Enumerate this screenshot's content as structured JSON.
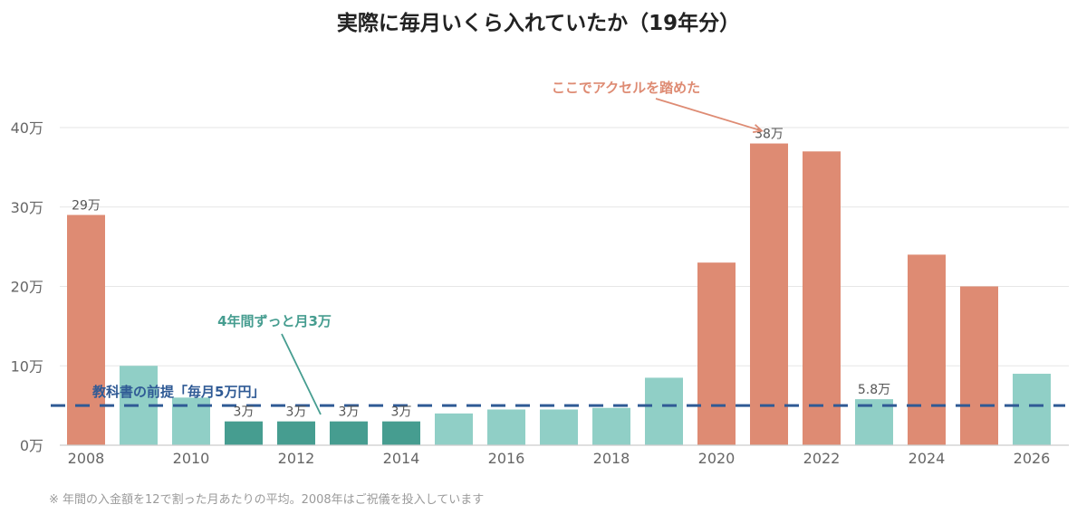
{
  "title": "実際に毎月いくら入れていたか（19年分）",
  "footnote": "※ 年間の入金額を12で割った月あたりの平均。2008年はご祝儀を投入しています",
  "colors": {
    "high": "#de8b73",
    "mid": "#90cfc6",
    "low": "#469d90",
    "reference": "#2f5a95",
    "grid": "#e6e6e6",
    "axis": "#cccccc",
    "tick_text": "#666666",
    "value_label": "#555555"
  },
  "chart_data": {
    "type": "bar",
    "title": "実際に毎月いくら入れていたか（19年分）",
    "xlabel": "",
    "ylabel": "",
    "categories": [
      "2008",
      "2009",
      "2010",
      "2011",
      "2012",
      "2013",
      "2014",
      "2015",
      "2016",
      "2017",
      "2018",
      "2019",
      "2020",
      "2021",
      "2022",
      "2023",
      "2024",
      "2025",
      "2026"
    ],
    "values": [
      29,
      10,
      6,
      3,
      3,
      3,
      3,
      4,
      4.5,
      4.5,
      4.7,
      8.5,
      23,
      38,
      37,
      5.8,
      24,
      20,
      9
    ],
    "levels": [
      "high",
      "mid",
      "mid",
      "low",
      "low",
      "low",
      "low",
      "mid",
      "mid",
      "mid",
      "mid",
      "mid",
      "high",
      "high",
      "high",
      "mid",
      "high",
      "high",
      "mid"
    ],
    "value_labels": [
      "29万",
      "",
      "",
      "3万",
      "3万",
      "3万",
      "3万",
      "",
      "",
      "",
      "",
      "",
      "",
      "38万",
      "",
      "5.8万",
      "",
      "",
      ""
    ],
    "x_tick_labels": [
      "2008",
      "",
      "2010",
      "",
      "2012",
      "",
      "2014",
      "",
      "2016",
      "",
      "2018",
      "",
      "2020",
      "",
      "2022",
      "",
      "2024",
      "",
      "2026"
    ],
    "ylim": [
      0,
      40
    ],
    "y_ticks": [
      0,
      10,
      20,
      30,
      40
    ],
    "y_tick_labels": [
      "0万",
      "10万",
      "20万",
      "30万",
      "40万"
    ],
    "grid": true,
    "reference_line": {
      "value": 5,
      "label": "教科書の前提「毎月5万円」"
    },
    "annotations": [
      {
        "text": "ここでアクセルを踏めた",
        "target_index": 13
      },
      {
        "text": "4年間ずっと月3万",
        "target_index": 3
      }
    ]
  }
}
